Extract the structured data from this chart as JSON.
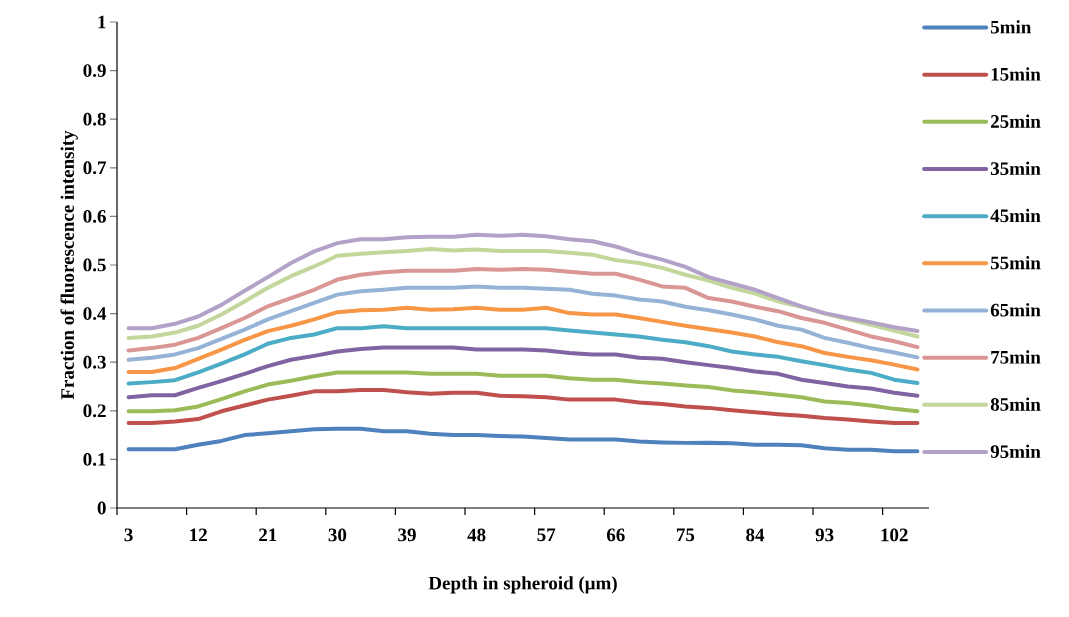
{
  "chart_data": {
    "type": "line",
    "xlabel": "Depth in spheroid (μm)",
    "ylabel": "Fraction of  fluorescence intensity",
    "categories": [
      "3",
      null,
      null,
      "12",
      null,
      null,
      "21",
      null,
      null,
      "30",
      null,
      null,
      "39",
      null,
      null,
      "48",
      null,
      null,
      "57",
      null,
      null,
      "66",
      null,
      null,
      "75",
      null,
      null,
      "84",
      null,
      null,
      "93",
      null,
      null,
      "102",
      null
    ],
    "series": [
      {
        "name": "5min",
        "color": "#4f81bd",
        "values": [
          0.121,
          0.121,
          0.121,
          0.13,
          0.138,
          0.15,
          0.154,
          0.158,
          0.162,
          0.163,
          0.163,
          0.158,
          0.158,
          0.153,
          0.15,
          0.15,
          0.148,
          0.147,
          0.144,
          0.141,
          0.141,
          0.141,
          0.137,
          0.135,
          0.134,
          0.134,
          0.133,
          0.13,
          0.13,
          0.129,
          0.123,
          0.12,
          0.12,
          0.117,
          0.117
        ]
      },
      {
        "name": "15min",
        "color": "#c0504d",
        "values": [
          0.175,
          0.175,
          0.178,
          0.183,
          0.199,
          0.211,
          0.223,
          0.231,
          0.24,
          0.24,
          0.243,
          0.243,
          0.238,
          0.235,
          0.237,
          0.237,
          0.231,
          0.23,
          0.228,
          0.223,
          0.223,
          0.223,
          0.217,
          0.214,
          0.209,
          0.206,
          0.201,
          0.197,
          0.193,
          0.19,
          0.185,
          0.182,
          0.178,
          0.175,
          0.175
        ]
      },
      {
        "name": "25min",
        "color": "#9bbb59",
        "values": [
          0.199,
          0.199,
          0.201,
          0.209,
          0.224,
          0.24,
          0.254,
          0.262,
          0.271,
          0.279,
          0.279,
          0.279,
          0.279,
          0.276,
          0.276,
          0.276,
          0.272,
          0.272,
          0.272,
          0.267,
          0.264,
          0.264,
          0.259,
          0.256,
          0.252,
          0.249,
          0.242,
          0.238,
          0.233,
          0.228,
          0.219,
          0.216,
          0.211,
          0.204,
          0.199
        ]
      },
      {
        "name": "35min",
        "color": "#8064a2",
        "values": [
          0.228,
          0.232,
          0.232,
          0.247,
          0.261,
          0.276,
          0.292,
          0.305,
          0.313,
          0.322,
          0.327,
          0.33,
          0.33,
          0.33,
          0.33,
          0.326,
          0.326,
          0.326,
          0.324,
          0.319,
          0.316,
          0.316,
          0.309,
          0.307,
          0.3,
          0.294,
          0.288,
          0.281,
          0.276,
          0.264,
          0.257,
          0.25,
          0.246,
          0.237,
          0.231
        ]
      },
      {
        "name": "45min",
        "color": "#4bacc6",
        "values": [
          0.256,
          0.259,
          0.263,
          0.279,
          0.297,
          0.316,
          0.338,
          0.35,
          0.357,
          0.37,
          0.37,
          0.374,
          0.37,
          0.37,
          0.37,
          0.37,
          0.37,
          0.37,
          0.37,
          0.365,
          0.361,
          0.357,
          0.353,
          0.346,
          0.341,
          0.333,
          0.322,
          0.316,
          0.311,
          0.302,
          0.294,
          0.285,
          0.278,
          0.264,
          0.257
        ]
      },
      {
        "name": "55min",
        "color": "#f79646",
        "values": [
          0.28,
          0.28,
          0.288,
          0.307,
          0.326,
          0.346,
          0.364,
          0.375,
          0.388,
          0.403,
          0.407,
          0.408,
          0.412,
          0.408,
          0.409,
          0.412,
          0.408,
          0.408,
          0.412,
          0.401,
          0.398,
          0.398,
          0.391,
          0.383,
          0.375,
          0.368,
          0.361,
          0.353,
          0.341,
          0.333,
          0.319,
          0.311,
          0.304,
          0.295,
          0.285
        ]
      },
      {
        "name": "65min",
        "color": "#95b3d7",
        "values": [
          0.305,
          0.309,
          0.316,
          0.329,
          0.348,
          0.367,
          0.388,
          0.405,
          0.422,
          0.439,
          0.446,
          0.449,
          0.453,
          0.453,
          0.453,
          0.456,
          0.453,
          0.453,
          0.451,
          0.449,
          0.441,
          0.437,
          0.429,
          0.425,
          0.414,
          0.407,
          0.398,
          0.388,
          0.375,
          0.367,
          0.35,
          0.34,
          0.329,
          0.32,
          0.31
        ]
      },
      {
        "name": "75min",
        "color": "#d99694",
        "values": [
          0.324,
          0.329,
          0.336,
          0.35,
          0.37,
          0.391,
          0.415,
          0.432,
          0.449,
          0.47,
          0.48,
          0.485,
          0.488,
          0.488,
          0.488,
          0.492,
          0.49,
          0.492,
          0.49,
          0.486,
          0.482,
          0.482,
          0.47,
          0.456,
          0.453,
          0.432,
          0.425,
          0.414,
          0.405,
          0.391,
          0.381,
          0.367,
          0.353,
          0.343,
          0.331
        ]
      },
      {
        "name": "85min",
        "color": "#c3d69b",
        "values": [
          0.35,
          0.353,
          0.361,
          0.375,
          0.398,
          0.425,
          0.453,
          0.477,
          0.497,
          0.519,
          0.523,
          0.526,
          0.529,
          0.533,
          0.53,
          0.532,
          0.529,
          0.529,
          0.529,
          0.525,
          0.521,
          0.51,
          0.504,
          0.494,
          0.48,
          0.468,
          0.453,
          0.441,
          0.425,
          0.414,
          0.4,
          0.388,
          0.377,
          0.365,
          0.353
        ]
      },
      {
        "name": "95min",
        "color": "#b3a2c7",
        "values": [
          0.37,
          0.37,
          0.379,
          0.394,
          0.418,
          0.447,
          0.475,
          0.504,
          0.528,
          0.545,
          0.553,
          0.553,
          0.557,
          0.558,
          0.558,
          0.562,
          0.56,
          0.562,
          0.559,
          0.553,
          0.549,
          0.538,
          0.523,
          0.511,
          0.496,
          0.475,
          0.462,
          0.449,
          0.432,
          0.415,
          0.401,
          0.391,
          0.382,
          0.372,
          0.364
        ]
      }
    ],
    "ylim": [
      0,
      1
    ],
    "yticks": [
      0,
      0.1,
      0.2,
      0.3,
      0.4,
      0.5,
      0.6,
      0.7,
      0.8,
      0.9,
      1
    ],
    "legend": "right"
  }
}
